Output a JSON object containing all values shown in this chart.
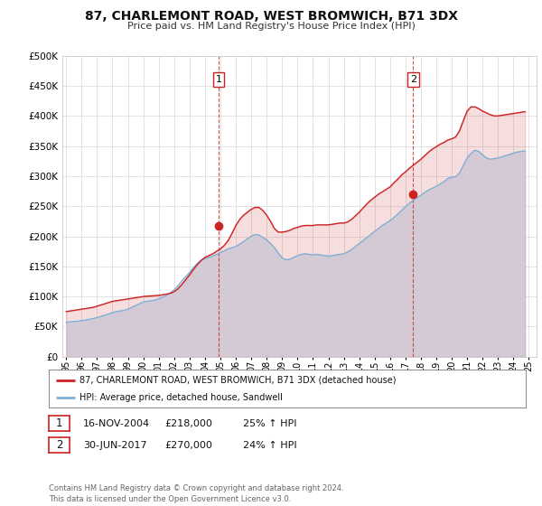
{
  "title": "87, CHARLEMONT ROAD, WEST BROMWICH, B71 3DX",
  "subtitle": "Price paid vs. HM Land Registry's House Price Index (HPI)",
  "hpi_color": "#7eb0d5",
  "hpi_fill_color": "#d6e8f5",
  "price_color": "#cc2222",
  "background_color": "#ffffff",
  "plot_bg_color": "#ffffff",
  "grid_color": "#dddddd",
  "ylim": [
    0,
    500000
  ],
  "yticks": [
    0,
    50000,
    100000,
    150000,
    200000,
    250000,
    300000,
    350000,
    400000,
    450000,
    500000
  ],
  "xlim_start": 1994.75,
  "xlim_end": 2025.5,
  "xticks": [
    1995,
    1996,
    1997,
    1998,
    1999,
    2000,
    2001,
    2002,
    2003,
    2004,
    2005,
    2006,
    2007,
    2008,
    2009,
    2010,
    2011,
    2012,
    2013,
    2014,
    2015,
    2016,
    2017,
    2018,
    2019,
    2020,
    2021,
    2022,
    2023,
    2024,
    2025
  ],
  "event1_x": 2004.88,
  "event1_y": 218000,
  "event2_x": 2017.5,
  "event2_y": 270000,
  "event1_date": "16-NOV-2004",
  "event1_price": "£218,000",
  "event1_hpi": "25% ↑ HPI",
  "event2_date": "30-JUN-2017",
  "event2_price": "£270,000",
  "event2_hpi": "24% ↑ HPI",
  "legend_line1": "87, CHARLEMONT ROAD, WEST BROMWICH, B71 3DX (detached house)",
  "legend_line2": "HPI: Average price, detached house, Sandwell",
  "footer": "Contains HM Land Registry data © Crown copyright and database right 2024.\nThis data is licensed under the Open Government Licence v3.0.",
  "hpi_data_x": [
    1995.0,
    1995.25,
    1995.5,
    1995.75,
    1996.0,
    1996.25,
    1996.5,
    1996.75,
    1997.0,
    1997.25,
    1997.5,
    1997.75,
    1998.0,
    1998.25,
    1998.5,
    1998.75,
    1999.0,
    1999.25,
    1999.5,
    1999.75,
    2000.0,
    2000.25,
    2000.5,
    2000.75,
    2001.0,
    2001.25,
    2001.5,
    2001.75,
    2002.0,
    2002.25,
    2002.5,
    2002.75,
    2003.0,
    2003.25,
    2003.5,
    2003.75,
    2004.0,
    2004.25,
    2004.5,
    2004.75,
    2005.0,
    2005.25,
    2005.5,
    2005.75,
    2006.0,
    2006.25,
    2006.5,
    2006.75,
    2007.0,
    2007.25,
    2007.5,
    2007.75,
    2008.0,
    2008.25,
    2008.5,
    2008.75,
    2009.0,
    2009.25,
    2009.5,
    2009.75,
    2010.0,
    2010.25,
    2010.5,
    2010.75,
    2011.0,
    2011.25,
    2011.5,
    2011.75,
    2012.0,
    2012.25,
    2012.5,
    2012.75,
    2013.0,
    2013.25,
    2013.5,
    2013.75,
    2014.0,
    2014.25,
    2014.5,
    2014.75,
    2015.0,
    2015.25,
    2015.5,
    2015.75,
    2016.0,
    2016.25,
    2016.5,
    2016.75,
    2017.0,
    2017.25,
    2017.5,
    2017.75,
    2018.0,
    2018.25,
    2018.5,
    2018.75,
    2019.0,
    2019.25,
    2019.5,
    2019.75,
    2020.0,
    2020.25,
    2020.5,
    2020.75,
    2021.0,
    2021.25,
    2021.5,
    2021.75,
    2022.0,
    2022.25,
    2022.5,
    2022.75,
    2023.0,
    2023.25,
    2023.5,
    2023.75,
    2024.0,
    2024.25,
    2024.5,
    2024.75
  ],
  "hpi_data_y": [
    57000,
    58000,
    58500,
    59000,
    60000,
    61000,
    62000,
    63500,
    65000,
    67000,
    69000,
    71000,
    73000,
    75000,
    76000,
    77000,
    79000,
    82000,
    85000,
    88000,
    91000,
    92000,
    93000,
    94000,
    96000,
    99000,
    102000,
    106000,
    111000,
    118000,
    126000,
    133000,
    140000,
    148000,
    155000,
    160000,
    163000,
    165000,
    167000,
    170000,
    173000,
    176000,
    179000,
    181000,
    183000,
    187000,
    191000,
    196000,
    200000,
    203000,
    202000,
    198000,
    194000,
    188000,
    181000,
    172000,
    164000,
    161000,
    162000,
    165000,
    168000,
    170000,
    171000,
    170000,
    169000,
    170000,
    169000,
    168000,
    167000,
    168000,
    169000,
    170000,
    171000,
    174000,
    178000,
    183000,
    188000,
    193000,
    198000,
    203000,
    208000,
    213000,
    218000,
    222000,
    226000,
    231000,
    237000,
    243000,
    249000,
    255000,
    260000,
    264000,
    268000,
    273000,
    277000,
    280000,
    283000,
    287000,
    291000,
    296000,
    298000,
    299000,
    305000,
    318000,
    330000,
    338000,
    343000,
    341000,
    335000,
    330000,
    328000,
    329000,
    330000,
    332000,
    334000,
    336000,
    338000,
    340000,
    341000,
    342000
  ],
  "price_data_x": [
    1995.0,
    1995.25,
    1995.5,
    1995.75,
    1996.0,
    1996.25,
    1996.5,
    1996.75,
    1997.0,
    1997.25,
    1997.5,
    1997.75,
    1998.0,
    1998.25,
    1998.5,
    1998.75,
    1999.0,
    1999.25,
    1999.5,
    1999.75,
    2000.0,
    2000.25,
    2000.5,
    2000.75,
    2001.0,
    2001.25,
    2001.5,
    2001.75,
    2002.0,
    2002.25,
    2002.5,
    2002.75,
    2003.0,
    2003.25,
    2003.5,
    2003.75,
    2004.0,
    2004.25,
    2004.5,
    2004.75,
    2005.0,
    2005.25,
    2005.5,
    2005.75,
    2006.0,
    2006.25,
    2006.5,
    2006.75,
    2007.0,
    2007.25,
    2007.5,
    2007.75,
    2008.0,
    2008.25,
    2008.5,
    2008.75,
    2009.0,
    2009.25,
    2009.5,
    2009.75,
    2010.0,
    2010.25,
    2010.5,
    2010.75,
    2011.0,
    2011.25,
    2011.5,
    2011.75,
    2012.0,
    2012.25,
    2012.5,
    2012.75,
    2013.0,
    2013.25,
    2013.5,
    2013.75,
    2014.0,
    2014.25,
    2014.5,
    2014.75,
    2015.0,
    2015.25,
    2015.5,
    2015.75,
    2016.0,
    2016.25,
    2016.5,
    2016.75,
    2017.0,
    2017.25,
    2017.5,
    2017.75,
    2018.0,
    2018.25,
    2018.5,
    2018.75,
    2019.0,
    2019.25,
    2019.5,
    2019.75,
    2020.0,
    2020.25,
    2020.5,
    2020.75,
    2021.0,
    2021.25,
    2021.5,
    2021.75,
    2022.0,
    2022.25,
    2022.5,
    2022.75,
    2023.0,
    2023.25,
    2023.5,
    2023.75,
    2024.0,
    2024.25,
    2024.5,
    2024.75
  ],
  "price_data_y": [
    75000,
    76000,
    77000,
    78000,
    79000,
    80000,
    81000,
    82000,
    84000,
    86000,
    88000,
    90000,
    92000,
    93000,
    94000,
    95000,
    96000,
    97000,
    98000,
    99000,
    100000,
    100500,
    101000,
    101500,
    102000,
    103000,
    104000,
    105500,
    108000,
    113000,
    120000,
    128000,
    136000,
    145000,
    153000,
    160000,
    165000,
    168000,
    171000,
    175000,
    179000,
    185000,
    193000,
    205000,
    218000,
    228000,
    235000,
    240000,
    245000,
    248000,
    248000,
    243000,
    235000,
    225000,
    213000,
    207000,
    207000,
    208000,
    210000,
    213000,
    215000,
    217000,
    218000,
    218000,
    218000,
    219000,
    219000,
    219000,
    219000,
    220000,
    221000,
    222000,
    222000,
    224000,
    228000,
    234000,
    240000,
    247000,
    254000,
    260000,
    265000,
    270000,
    274000,
    278000,
    282000,
    289000,
    295000,
    302000,
    307000,
    313000,
    318000,
    323000,
    328000,
    334000,
    340000,
    345000,
    349000,
    353000,
    356000,
    360000,
    362000,
    365000,
    375000,
    392000,
    408000,
    415000,
    415000,
    412000,
    408000,
    405000,
    402000,
    400000,
    400000,
    401000,
    402000,
    403000,
    404000,
    405000,
    406000,
    407000
  ]
}
